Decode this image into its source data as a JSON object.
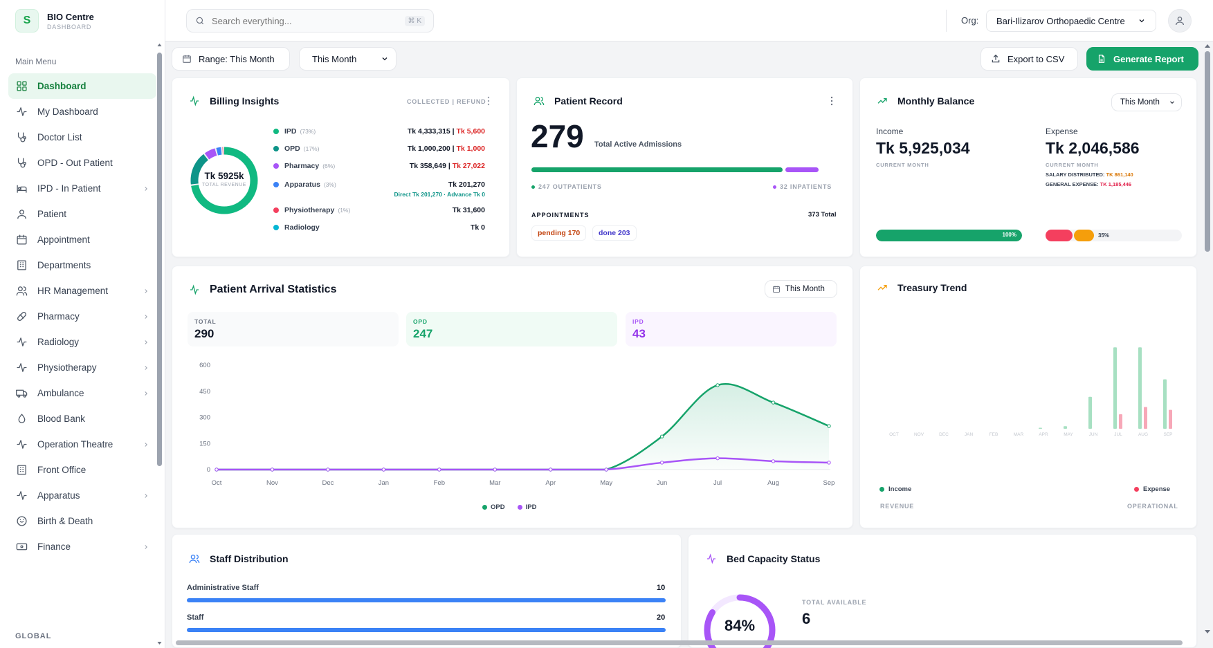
{
  "brand": {
    "logo_letter": "S",
    "name": "BIO Centre",
    "subtitle": "DASHBOARD"
  },
  "sidebar": {
    "section_title": "Main Menu",
    "items": [
      {
        "label": "Dashboard",
        "icon": "grid-icon",
        "active": true,
        "has_children": false
      },
      {
        "label": "My Dashboard",
        "icon": "activity-icon",
        "has_children": false
      },
      {
        "label": "Doctor List",
        "icon": "stethoscope-icon",
        "has_children": false
      },
      {
        "label": "OPD - Out Patient",
        "icon": "stethoscope-icon",
        "has_children": false
      },
      {
        "label": "IPD - In Patient",
        "icon": "bed-icon",
        "has_children": true
      },
      {
        "label": "Patient",
        "icon": "user-icon",
        "has_children": false
      },
      {
        "label": "Appointment",
        "icon": "calendar-icon",
        "has_children": false
      },
      {
        "label": "Departments",
        "icon": "building-icon",
        "has_children": false
      },
      {
        "label": "HR Management",
        "icon": "users-icon",
        "has_children": true
      },
      {
        "label": "Pharmacy",
        "icon": "pill-icon",
        "has_children": true
      },
      {
        "label": "Radiology",
        "icon": "activity-icon",
        "has_children": true
      },
      {
        "label": "Physiotherapy",
        "icon": "activity-icon",
        "has_children": true
      },
      {
        "label": "Ambulance",
        "icon": "truck-icon",
        "has_children": true
      },
      {
        "label": "Blood Bank",
        "icon": "droplet-icon",
        "has_children": false
      },
      {
        "label": "Operation Theatre",
        "icon": "activity-icon",
        "has_children": true
      },
      {
        "label": "Front Office",
        "icon": "building-icon",
        "has_children": false
      },
      {
        "label": "Apparatus",
        "icon": "activity-icon",
        "has_children": true
      },
      {
        "label": "Birth & Death",
        "icon": "baby-icon",
        "has_children": false
      },
      {
        "label": "Finance",
        "icon": "banknote-icon",
        "has_children": true
      }
    ],
    "global_title": "GLOBAL"
  },
  "topbar": {
    "search_placeholder": "Search everything...",
    "shortcut": "⌘ K",
    "org_label": "Org:",
    "org_value": "Bari-Ilizarov Orthopaedic Centre"
  },
  "toolbar": {
    "range_label": "Range: This Month",
    "period_select": "This Month",
    "export_label": "Export to CSV",
    "generate_label": "Generate Report"
  },
  "billing": {
    "title": "Billing Insights",
    "header_right": "COLLECTED | REFUND",
    "donut_value": "Tk 5925k",
    "donut_label": "TOTAL REVENUE",
    "rows": [
      {
        "name": "IPD",
        "pct": "(73%)",
        "color": "#10b981",
        "value": "Tk 4,333,315",
        "sep": " | ",
        "refund": "Tk 5,600",
        "share": 73
      },
      {
        "name": "OPD",
        "pct": "(17%)",
        "color": "#0d9488",
        "value": "Tk 1,000,200",
        "sep": " | ",
        "refund": "Tk 1,000",
        "share": 17
      },
      {
        "name": "Pharmacy",
        "pct": "(6%)",
        "color": "#a855f7",
        "value": "Tk 358,649",
        "sep": " | ",
        "refund": "Tk 27,022",
        "share": 6
      },
      {
        "name": "Apparatus",
        "pct": "(3%)",
        "color": "#3b82f6",
        "value": "Tk 201,270",
        "sep": "",
        "refund": "",
        "sub": "Direct Tk 201,270 · Advance Tk 0",
        "share": 3
      },
      {
        "name": "Physiotherapy",
        "pct": "(1%)",
        "color": "#f43f5e",
        "value": "Tk 31,600",
        "sep": "",
        "refund": "",
        "share": 1
      },
      {
        "name": "Radiology",
        "pct": "",
        "color": "#06b6d4",
        "value": "Tk 0",
        "sep": "",
        "refund": "",
        "share": 0
      }
    ]
  },
  "patient_record": {
    "title": "Patient Record",
    "count": "279",
    "count_label": "Total Active Admissions",
    "outpatients": "247 OUTPATIENTS",
    "inpatients": "32 INPATIENTS",
    "outpatient_share": 0.885,
    "appointments_label": "APPOINTMENTS",
    "appointments_total": "373 Total",
    "pending": "pending 170",
    "done": "done 203"
  },
  "monthly_balance": {
    "title": "Monthly Balance",
    "period": "This Month",
    "income_label": "Income",
    "income_value": "Tk 5,925,034",
    "income_sub": "CURRENT MONTH",
    "expense_label": "Expense",
    "expense_value": "Tk 2,046,586",
    "expense_sub": "CURRENT MONTH",
    "salary_label": "SALARY DISTRIBUTED:",
    "salary_value": "TK 861,140",
    "general_label": "GENERAL EXPENSE:",
    "general_value": "TK 1,185,446",
    "income_bar_label": "100%",
    "income_bar_pct": 100,
    "expense_bar_label": "35%",
    "expense_bar_pct": 35
  },
  "arrival": {
    "title": "Patient Arrival Statistics",
    "period": "This Month",
    "total_label": "TOTAL",
    "total_value": "290",
    "opd_label": "OPD",
    "opd_value": "247",
    "ipd_label": "IPD",
    "ipd_value": "43",
    "legend_opd": "OPD",
    "legend_ipd": "IPD"
  },
  "treasury": {
    "title": "Treasury Trend",
    "legend_income": "Income",
    "legend_expense": "Expense",
    "footer_left": "REVENUE",
    "footer_right": "OPERATIONAL"
  },
  "staff": {
    "title": "Staff Distribution",
    "rows": [
      {
        "label": "Administrative Staff",
        "value": "10"
      },
      {
        "label": "Staff",
        "value": "20"
      }
    ]
  },
  "bed": {
    "title": "Bed Capacity Status",
    "pct": "84%",
    "pct_value": 84,
    "available_label": "TOTAL AVAILABLE",
    "available_value": "6"
  },
  "chart_data": [
    {
      "type": "line",
      "x": [
        "Oct",
        "Nov",
        "Dec",
        "Jan",
        "Feb",
        "Mar",
        "Apr",
        "May",
        "Jun",
        "Jul",
        "Aug",
        "Sep"
      ],
      "ylim": [
        0,
        600
      ],
      "yticks": [
        "600",
        "450",
        "300",
        "150",
        "0"
      ],
      "series": [
        {
          "name": "OPD",
          "color": "#16a36a",
          "values": [
            0,
            0,
            0,
            0,
            0,
            0,
            0,
            0,
            190,
            485,
            385,
            250
          ]
        },
        {
          "name": "IPD",
          "color": "#a855f7",
          "values": [
            0,
            0,
            0,
            0,
            0,
            0,
            0,
            0,
            40,
            65,
            48,
            40
          ]
        }
      ]
    },
    {
      "type": "bar",
      "categories": [
        "OCT",
        "NOV",
        "DEC",
        "JAN",
        "FEB",
        "MAR",
        "APR",
        "MAY",
        "JUN",
        "JUL",
        "AUG",
        "SEP"
      ],
      "series": [
        {
          "name": "Income",
          "color": "#a7e0c2",
          "values": [
            0,
            0,
            0,
            0,
            0,
            0,
            0.2,
            0.9,
            11,
            28,
            28,
            17
          ]
        },
        {
          "name": "Expense",
          "color": "#f7a8b8",
          "values": [
            0,
            0,
            0,
            0,
            0,
            0,
            0,
            0,
            0,
            5,
            7.5,
            6.5
          ]
        }
      ]
    }
  ]
}
